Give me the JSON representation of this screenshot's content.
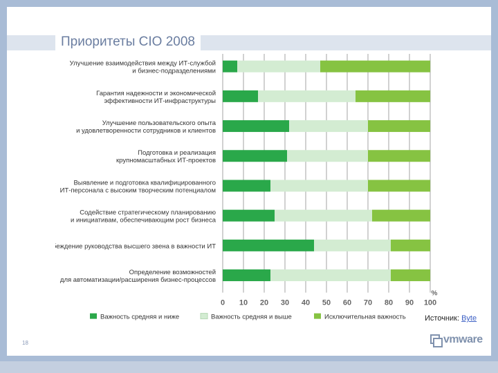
{
  "slide": {
    "title": "Приоритеты CIO 2008",
    "source_label": "Источник: ",
    "source_link": "Byte",
    "page_number": "18",
    "logo_text": "vmware",
    "colors": {
      "dark_green": "#2aa84a",
      "light_green": "#d3ecd2",
      "mid_green": "#86c342",
      "background": "#a9bcd6"
    }
  },
  "chart_data": {
    "type": "bar",
    "orientation": "horizontal",
    "stacked": true,
    "categories": [
      [
        "Улучшение взаимодействия между ИТ-службой",
        "и бизнес-подразделениями"
      ],
      [
        "Гарантия надежности и экономической",
        "эффективности ИТ-инфраструктуры"
      ],
      [
        "Улучшение пользовательского опыта",
        "и удовлетворенности сотрудников и клиентов"
      ],
      [
        "Подготовка и реализация",
        "крупномасштабных ИТ-проектов"
      ],
      [
        "Выявление и подготовка квалифицированного",
        "ИТ-персонала с высоким творческим потенциалом"
      ],
      [
        "Содействие стратегическому планированию",
        "и инициативам, обеспечивающим рост бизнеса"
      ],
      [
        "Убеждение руководства высшего звена в важности ИТ"
      ],
      [
        "Определение возможностей",
        "для автоматизации/расширения бизнес-процессов"
      ]
    ],
    "series": [
      {
        "name": "Важность средняя и ниже",
        "color": "#2aa84a",
        "values": [
          7,
          17,
          32,
          31,
          23,
          25,
          44,
          23
        ]
      },
      {
        "name": "Важность средняя и выше",
        "color": "#d3ecd2",
        "values": [
          40,
          47,
          38,
          39,
          47,
          47,
          37,
          58
        ]
      },
      {
        "name": "Исключительная важность",
        "color": "#86c342",
        "values": [
          53,
          36,
          30,
          30,
          30,
          28,
          19,
          19
        ]
      }
    ],
    "xlim": [
      0,
      100
    ],
    "xticks": [
      0,
      10,
      20,
      30,
      40,
      50,
      60,
      70,
      80,
      90,
      100
    ],
    "unit_label": "%",
    "grid": true,
    "legend_position": "bottom"
  }
}
